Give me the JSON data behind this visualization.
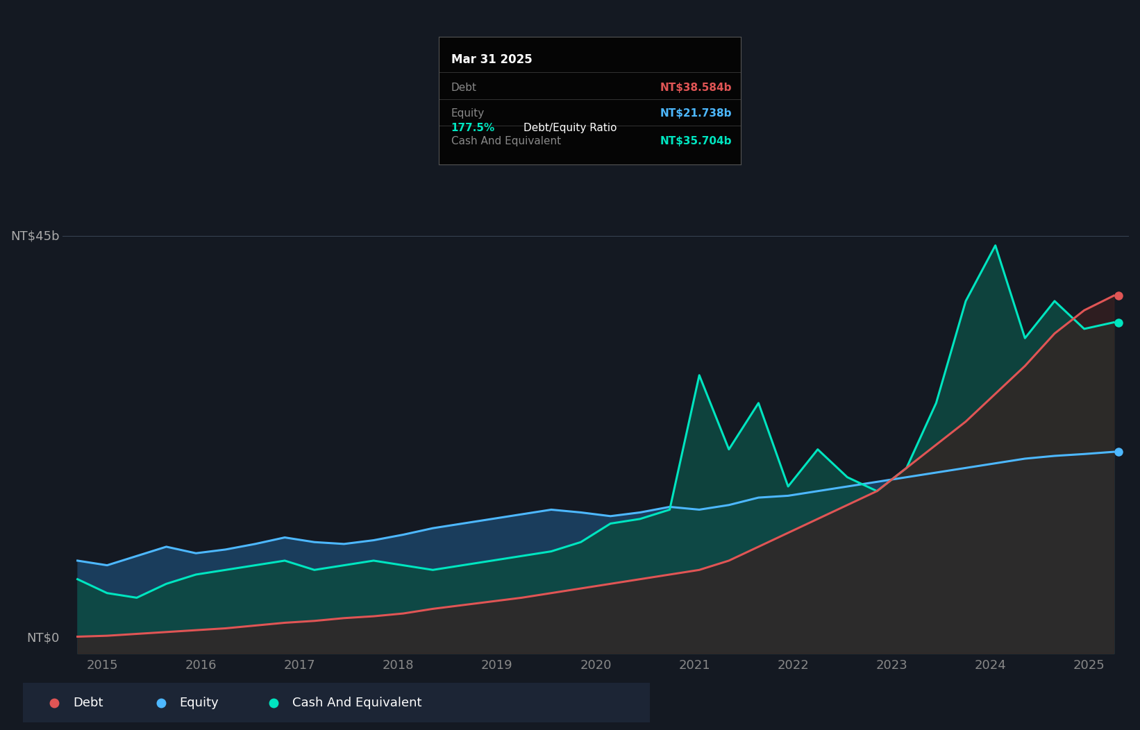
{
  "bg_color": "#141922",
  "plot_bg_color": "#141d2b",
  "grid_color": "#2a3545",
  "debt_color": "#e05555",
  "equity_color": "#4db8ff",
  "cash_color": "#00e5c0",
  "tooltip_date": "Mar 31 2025",
  "tooltip_debt_label": "Debt",
  "tooltip_debt_value": "NT$38.584b",
  "tooltip_equity_label": "Equity",
  "tooltip_equity_value": "NT$21.738b",
  "tooltip_ratio": "177.5%",
  "tooltip_ratio_label": "Debt/Equity Ratio",
  "tooltip_cash_label": "Cash And Equivalent",
  "tooltip_cash_value": "NT$35.704b",
  "ylabel_top": "NT$45b",
  "ylabel_bottom": "NT$0",
  "x_years": [
    2015,
    2016,
    2017,
    2018,
    2019,
    2020,
    2021,
    2022,
    2023,
    2024,
    2025
  ],
  "ylim_max": 50.0,
  "year_start": 2014.6,
  "year_end": 2025.4,
  "debt_data": [
    1.8,
    1.9,
    2.1,
    2.3,
    2.5,
    2.7,
    3.0,
    3.3,
    3.5,
    3.8,
    4.0,
    4.3,
    4.8,
    5.2,
    5.6,
    6.0,
    6.5,
    7.0,
    7.5,
    8.0,
    8.5,
    9.0,
    10.0,
    11.5,
    13.0,
    14.5,
    16.0,
    17.5,
    20.0,
    22.5,
    25.0,
    28.0,
    31.0,
    34.5,
    37.0,
    38.584
  ],
  "equity_data": [
    10.0,
    9.5,
    10.5,
    11.5,
    10.8,
    11.2,
    11.8,
    12.5,
    12.0,
    11.8,
    12.2,
    12.8,
    13.5,
    14.0,
    14.5,
    15.0,
    15.5,
    15.2,
    14.8,
    15.2,
    15.8,
    15.5,
    16.0,
    16.8,
    17.0,
    17.5,
    18.0,
    18.5,
    19.0,
    19.5,
    20.0,
    20.5,
    21.0,
    21.3,
    21.5,
    21.738
  ],
  "cash_data": [
    8.0,
    6.5,
    6.0,
    7.5,
    8.5,
    9.0,
    9.5,
    10.0,
    9.0,
    9.5,
    10.0,
    9.5,
    9.0,
    9.5,
    10.0,
    10.5,
    11.0,
    12.0,
    14.0,
    14.5,
    15.5,
    30.0,
    22.0,
    27.0,
    18.0,
    22.0,
    19.0,
    17.5,
    20.0,
    27.0,
    38.0,
    44.0,
    34.0,
    38.0,
    35.0,
    35.704
  ],
  "n_points": 36
}
